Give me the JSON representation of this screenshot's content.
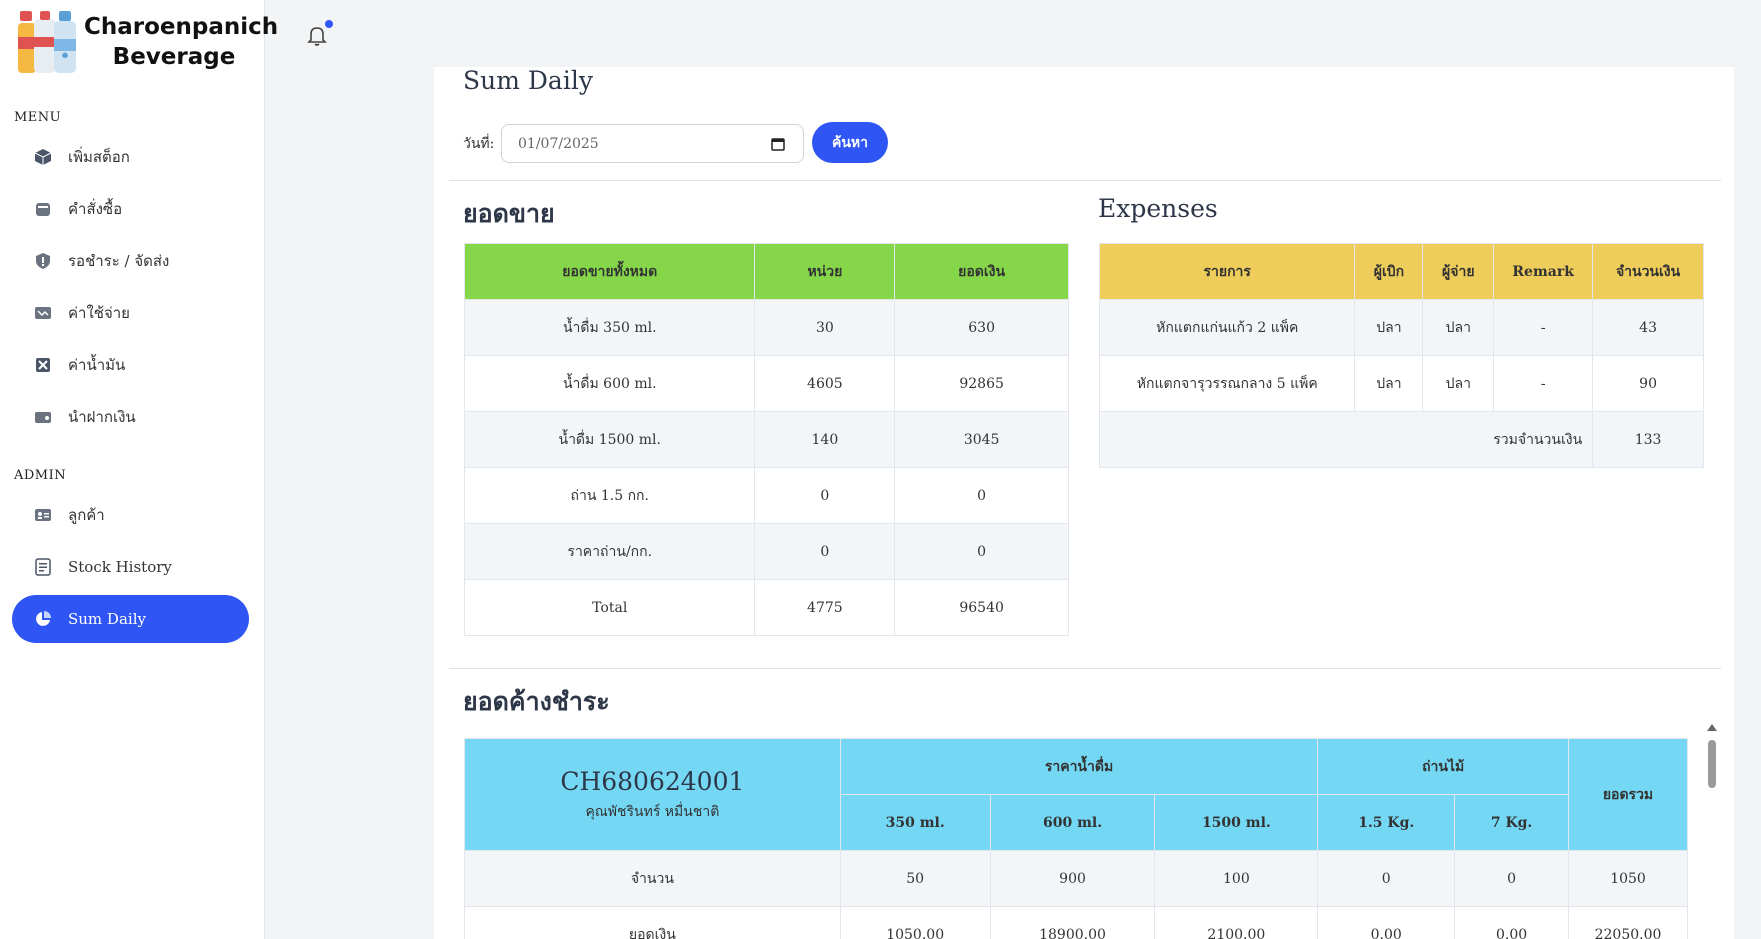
{
  "brand": {
    "name_line1": "Charoenpanich",
    "name_line2": "Beverage"
  },
  "menu": {
    "section_label": "MENU",
    "items": [
      {
        "label": "เพิ่มสต็อก",
        "icon": "box-icon"
      },
      {
        "label": "คำสั่งซื้อ",
        "icon": "basket-icon"
      },
      {
        "label": "รอชำระ / จัดส่ง",
        "icon": "shield-icon"
      },
      {
        "label": "ค่าใช้จ่าย",
        "icon": "money-icon"
      },
      {
        "label": "ค่าน้ำมัน",
        "icon": "fuel-icon"
      },
      {
        "label": "นำฝากเงิน",
        "icon": "wallet-icon"
      }
    ]
  },
  "admin": {
    "section_label": "ADMIN",
    "items": [
      {
        "label": "ลูกค้า",
        "icon": "id-card-icon"
      },
      {
        "label": "Stock History",
        "icon": "receipt-icon"
      },
      {
        "label": "Sum Daily",
        "icon": "pie-chart-icon",
        "active": true
      }
    ]
  },
  "page": {
    "title": "Sum Daily",
    "date_label": "วันที่:",
    "date_value": "01/07/2025",
    "search_label": "ค้นหา"
  },
  "sales": {
    "title": "ยอดขาย",
    "headers": [
      "ยอดขายทั้งหมด",
      "หน่วย",
      "ยอดเงิน"
    ],
    "rows": [
      [
        "น้ำดื่ม 350 ml.",
        "30",
        "630"
      ],
      [
        "น้ำดื่ม 600 ml.",
        "4605",
        "92865"
      ],
      [
        "น้ำดื่ม 1500 ml.",
        "140",
        "3045"
      ],
      [
        "ถ่าน 1.5 กก.",
        "0",
        "0"
      ],
      [
        "ราคาถ่าน/กก.",
        "0",
        "0"
      ],
      [
        "Total",
        "4775",
        "96540"
      ]
    ]
  },
  "expenses": {
    "title": "Expenses",
    "headers": [
      "รายการ",
      "ผู้เบิก",
      "ผู้จ่าย",
      "Remark",
      "จำนวนเงิน"
    ],
    "rows": [
      [
        "หักแตกแก่นแก้ว 2 แพ็ค",
        "ปลา",
        "ปลา",
        "-",
        "43"
      ],
      [
        "หักแตกจารุวรรณกลาง 5 แพ็ค",
        "ปลา",
        "ปลา",
        "-",
        "90"
      ]
    ],
    "total_label": "รวมจำนวนเงิน",
    "total_value": "133"
  },
  "outstanding": {
    "title": "ยอดค้างชำระ",
    "invoice_no": "CH680624001",
    "customer": "คุณพัชรินทร์ หมื่นชาติ",
    "group_water": "ราคาน้ำดื่ม",
    "group_charcoal": "ถ่านไม้",
    "total_header": "ยอดรวม",
    "sub_headers": [
      "350 ml.",
      "600 ml.",
      "1500 ml.",
      "1.5 Kg.",
      "7 Kg."
    ],
    "rows": [
      {
        "label": "จำนวน",
        "values": [
          "50",
          "900",
          "100",
          "0",
          "0",
          "1050"
        ]
      },
      {
        "label": "ยอดเงิน",
        "values": [
          "1050.00",
          "18900.00",
          "2100.00",
          "0.00",
          "0.00",
          "22050.00"
        ]
      }
    ]
  }
}
